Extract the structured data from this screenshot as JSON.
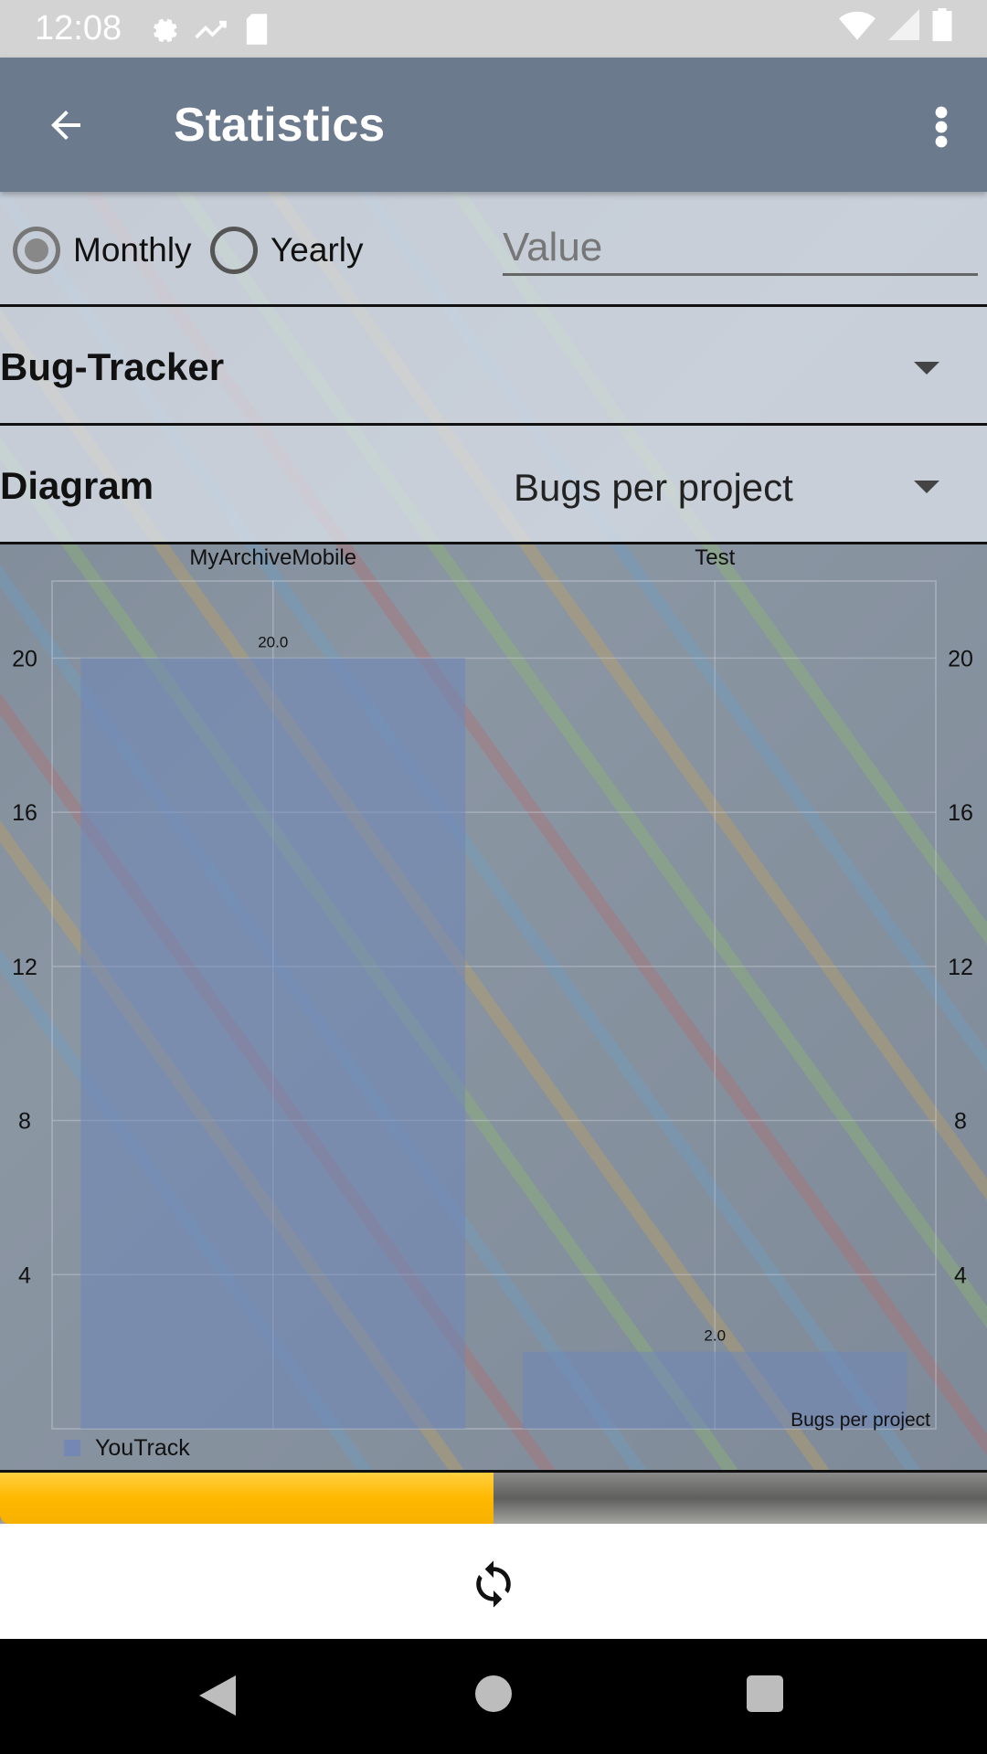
{
  "status_bar": {
    "time": "12:08",
    "icons": [
      "settings-icon",
      "trending-icon",
      "sd-card-icon",
      "wifi-icon",
      "signal-icon",
      "battery-icon"
    ]
  },
  "app_bar": {
    "title": "Statistics",
    "back_icon": "arrow-back-icon",
    "menu_icon": "more-vert-icon"
  },
  "period": {
    "options": [
      "Monthly",
      "Yearly"
    ],
    "selected": "Monthly",
    "value_placeholder": "Value"
  },
  "tracker_select": {
    "selected": "Bug-Tracker"
  },
  "diagram_select": {
    "label": "Diagram",
    "selected": "Bugs per project"
  },
  "chart_data": {
    "type": "bar",
    "categories": [
      "MyArchiveMobile",
      "Test"
    ],
    "series": [
      {
        "name": "YouTrack",
        "values": [
          20.0,
          2.0
        ]
      }
    ],
    "value_labels": [
      "20.0",
      "2.0"
    ],
    "y_ticks": [
      "4",
      "8",
      "12",
      "16",
      "20"
    ],
    "ylim": [
      0,
      22
    ],
    "description": "Bugs per project",
    "grid": true,
    "legend": "bottom-left",
    "colors": {
      "bar": "#6f86b8"
    }
  },
  "progress": {
    "fraction": 0.5,
    "color": "#ffbc00"
  },
  "bottom": {
    "refresh_icon": "refresh-icon"
  },
  "navbar": {
    "icons": [
      "nav-back-icon",
      "nav-home-icon",
      "nav-recents-icon"
    ]
  }
}
